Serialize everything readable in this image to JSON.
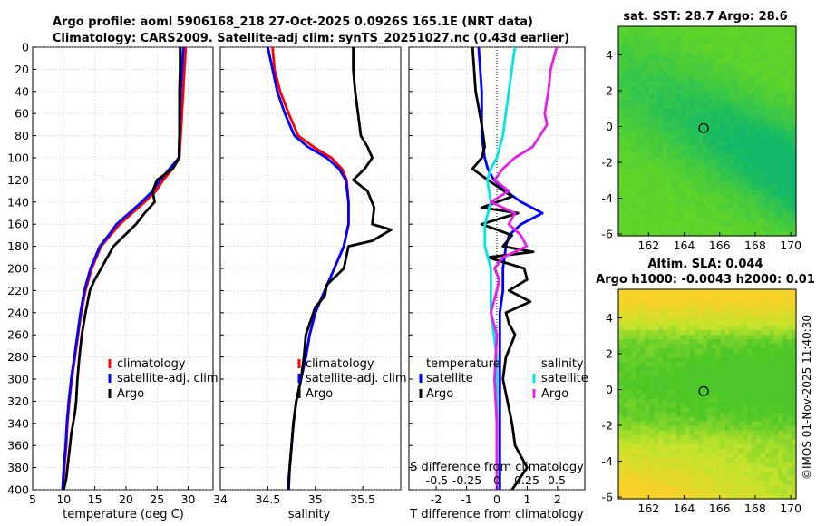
{
  "titles": {
    "line1": "Argo profile: aoml 5906168_218 27-Oct-2025 0.0926S 165.1E (NRT data)",
    "line2": "Climatology: CARS2009. Satellite-adj clim: synTS_20251027.nc (0.43d earlier)",
    "sst_title": "sat. SST: 28.7 Argo: 28.6",
    "sla_title1": "Altim. SLA: 0.044",
    "sla_title2": "Argo h1000: -0.0043 h2000: 0.01",
    "watermark": "©IMOS 01-Nov-2025 11:40:30"
  },
  "colors": {
    "climatology": "#ff0000",
    "satellite": "#0000ff",
    "argo": "#000000",
    "sal_satellite": "#00e5e5",
    "sal_argo": "#e620e6"
  },
  "chart_data": [
    {
      "type": "line",
      "name": "temperature",
      "xlabel": "temperature (deg C)",
      "xlim": [
        5,
        34
      ],
      "xticks": [
        5,
        10,
        15,
        20,
        25,
        30
      ],
      "xticklabels": [
        "5",
        "10",
        "15",
        "20",
        "25",
        "30"
      ],
      "ylim": [
        0,
        400
      ],
      "yticks": [
        0,
        20,
        40,
        60,
        80,
        100,
        120,
        140,
        160,
        180,
        200,
        220,
        240,
        260,
        280,
        300,
        320,
        340,
        360,
        380,
        400
      ],
      "yticklabels": [
        "0",
        "20",
        "40",
        "60",
        "80",
        "100",
        "120",
        "140",
        "160",
        "180",
        "200",
        "220",
        "240",
        "260",
        "280",
        "300",
        "320",
        "340",
        "360",
        "380",
        "400"
      ],
      "legend": [
        "climatology",
        "satellite-adj. clim",
        "Argo"
      ],
      "series": [
        {
          "name": "climatology",
          "color": "#ff0000",
          "x": [
            29.6,
            29.4,
            29.2,
            29.0,
            28.8,
            28.6,
            27.5,
            26.0,
            24.8,
            23.0,
            21.0,
            19.0,
            17.5,
            16.0,
            14.5,
            13.5,
            12.8,
            12.3,
            11.8,
            11.3,
            10.9,
            10.6,
            10.4,
            10.1,
            9.9
          ],
          "y": [
            0,
            20,
            40,
            60,
            80,
            100,
            110,
            120,
            130,
            140,
            150,
            160,
            170,
            180,
            200,
            220,
            240,
            260,
            280,
            300,
            320,
            340,
            360,
            380,
            400
          ]
        },
        {
          "name": "satellite-adj. clim",
          "color": "#0000ff",
          "x": [
            29.2,
            29.0,
            28.8,
            28.7,
            28.6,
            28.5,
            27.0,
            25.5,
            24.3,
            22.5,
            20.5,
            18.5,
            17.2,
            15.8,
            14.3,
            13.3,
            12.7,
            12.2,
            11.7,
            11.2,
            10.8,
            10.5,
            10.3,
            10.0,
            9.8
          ],
          "y": [
            0,
            20,
            40,
            60,
            80,
            100,
            110,
            120,
            130,
            140,
            150,
            160,
            170,
            180,
            200,
            220,
            240,
            260,
            280,
            300,
            320,
            340,
            360,
            380,
            400
          ]
        },
        {
          "name": "Argo",
          "color": "#000000",
          "x": [
            28.7,
            28.7,
            28.6,
            28.6,
            28.6,
            28.5,
            27.5,
            25.0,
            24.3,
            24.6,
            23.0,
            21.6,
            19.8,
            18.0,
            17.0,
            16.0,
            15.0,
            14.2,
            13.5,
            12.9,
            12.5,
            12.2,
            12.0,
            11.8,
            11.5,
            11.2,
            11.0,
            10.8,
            10.6,
            10.4,
            10.2,
            10.0
          ],
          "y": [
            0,
            20,
            40,
            60,
            80,
            100,
            110,
            120,
            130,
            140,
            150,
            160,
            170,
            180,
            190,
            200,
            210,
            220,
            240,
            260,
            280,
            300,
            320,
            330,
            340,
            350,
            360,
            370,
            380,
            390,
            395,
            400
          ]
        }
      ]
    },
    {
      "type": "line",
      "name": "salinity",
      "xlabel": "salinity",
      "xlim": [
        34,
        35.9
      ],
      "xticks": [
        34,
        34.5,
        35,
        35.5
      ],
      "xticklabels": [
        "34",
        "34.5",
        "35",
        "35.5"
      ],
      "ylim": [
        0,
        400
      ],
      "legend": [
        "climatology",
        "satellite-adj. clim",
        "Argo"
      ],
      "series": [
        {
          "name": "climatology",
          "color": "#ff0000",
          "x": [
            34.55,
            34.57,
            34.63,
            34.72,
            34.82,
            34.98,
            35.17,
            35.28,
            35.33,
            35.35,
            35.35,
            35.3,
            35.2,
            35.1,
            35.0,
            34.94,
            34.9,
            34.85,
            34.8,
            34.77,
            34.75,
            34.73,
            34.71
          ],
          "y": [
            0,
            20,
            40,
            60,
            80,
            90,
            100,
            110,
            120,
            140,
            160,
            180,
            200,
            220,
            240,
            260,
            280,
            300,
            320,
            340,
            360,
            380,
            400
          ]
        },
        {
          "name": "satellite-adj. clim",
          "color": "#0000ff",
          "x": [
            34.5,
            34.55,
            34.6,
            34.68,
            34.78,
            34.92,
            35.12,
            35.25,
            35.32,
            35.35,
            35.35,
            35.3,
            35.2,
            35.1,
            35.0,
            34.94,
            34.9,
            34.85,
            34.8,
            34.77,
            34.75,
            34.73,
            34.71
          ],
          "y": [
            0,
            20,
            40,
            60,
            80,
            90,
            100,
            110,
            120,
            140,
            160,
            180,
            200,
            220,
            240,
            260,
            280,
            300,
            320,
            340,
            360,
            380,
            400
          ]
        },
        {
          "name": "Argo",
          "color": "#000000",
          "x": [
            35.4,
            35.4,
            35.42,
            35.45,
            35.48,
            35.55,
            35.6,
            35.52,
            35.4,
            35.55,
            35.62,
            35.6,
            35.8,
            35.6,
            35.35,
            35.3,
            35.12,
            35.1,
            35.0,
            34.9,
            34.88,
            34.85,
            34.8,
            34.77,
            34.75,
            34.73,
            34.72
          ],
          "y": [
            0,
            20,
            40,
            60,
            80,
            90,
            100,
            110,
            120,
            130,
            145,
            160,
            165,
            175,
            180,
            200,
            215,
            225,
            235,
            260,
            280,
            300,
            320,
            340,
            360,
            380,
            400
          ]
        }
      ]
    },
    {
      "type": "line",
      "name": "difference",
      "xlabel": "T difference from climatology",
      "xlim": [
        -2.9,
        2.9
      ],
      "xticks": [
        -2,
        -1,
        0,
        1,
        2
      ],
      "xticklabels": [
        "-2",
        "-1",
        "0",
        "1",
        "2"
      ],
      "top_axis_label": "S difference from climatology",
      "top_ticks": [
        -0.5,
        -0.25,
        0,
        0.25,
        0.5
      ],
      "top_ticklabels": [
        "-0.5",
        "-0.25",
        "0",
        "0.25",
        "0.5"
      ],
      "ylim": [
        0,
        400
      ],
      "legend_left_header": "temperature",
      "legend_right_header": "salinity",
      "legend_left": [
        "satellite",
        "Argo"
      ],
      "legend_right": [
        "satellite",
        "Argo"
      ],
      "series": [
        {
          "name": "temperature satellite",
          "color": "#0000ff",
          "x": [
            -0.6,
            -0.5,
            -0.5,
            -0.4,
            -0.3,
            -0.1,
            0.3,
            0.8,
            1.5,
            0.8,
            0.4,
            0.3,
            0.2,
            0.2,
            0.1,
            0.1,
            0.1,
            0.1,
            0.1,
            0.1,
            0.1
          ],
          "y": [
            0,
            40,
            80,
            100,
            110,
            120,
            130,
            140,
            150,
            160,
            170,
            180,
            200,
            220,
            240,
            260,
            300,
            320,
            340,
            380,
            400
          ]
        },
        {
          "name": "temperature Argo",
          "color": "#000000",
          "x": [
            -0.8,
            -0.7,
            -0.5,
            -0.4,
            -0.5,
            -0.8,
            -0.3,
            0.5,
            -0.5,
            0.7,
            -0.5,
            0.5,
            0.2,
            1.2,
            -0.3,
            0.9,
            1.0,
            0.4,
            1.1,
            0.3,
            0.4,
            0.6,
            0.3,
            0.2,
            0.5,
            0.6,
            1.0,
            0.5
          ],
          "y": [
            0,
            40,
            70,
            90,
            100,
            110,
            120,
            135,
            145,
            150,
            160,
            170,
            180,
            185,
            190,
            200,
            210,
            220,
            230,
            240,
            250,
            260,
            280,
            300,
            340,
            360,
            380,
            400
          ]
        },
        {
          "name": "salinity satellite",
          "color": "#00e5e5",
          "x": [
            0.15,
            0.1,
            0.05,
            0.0,
            -0.05,
            -0.08,
            -0.05,
            -0.1,
            -0.1,
            -0.05,
            -0.05,
            0.0,
            0.0,
            0.0,
            0.0,
            0.0
          ],
          "y": [
            0,
            40,
            80,
            100,
            110,
            120,
            140,
            160,
            180,
            200,
            240,
            280,
            300,
            340,
            380,
            400
          ]
        },
        {
          "name": "salinity Argo",
          "color": "#e620e6",
          "x": [
            0.5,
            0.45,
            0.43,
            0.4,
            0.42,
            0.3,
            0.15,
            0.05,
            -0.02,
            0.1,
            -0.05,
            0.15,
            0.1,
            0.2,
            0.25,
            0.05,
            -0.02,
            0.02,
            0.0,
            -0.05,
            0.0,
            -0.02,
            0.0,
            0.0
          ],
          "y": [
            0,
            20,
            40,
            60,
            70,
            90,
            100,
            110,
            120,
            130,
            140,
            150,
            160,
            170,
            180,
            190,
            200,
            210,
            220,
            240,
            260,
            300,
            340,
            400
          ]
        }
      ]
    },
    {
      "type": "heatmap",
      "name": "sst_map",
      "title": "sat. SST: 28.7 Argo: 28.6",
      "xticks": [
        162,
        164,
        166,
        168,
        170
      ],
      "xticklabels": [
        "162",
        "164",
        "166",
        "168",
        "170"
      ],
      "yticks": [
        4,
        2,
        0,
        -2,
        -4,
        -6
      ],
      "yticklabels": [
        "4",
        "2",
        "0",
        "-2",
        "-4",
        "-6"
      ],
      "xlim": [
        160.3,
        170.3
      ],
      "ylim": [
        -6.1,
        5.6
      ],
      "marker": {
        "lon": 165.1,
        "lat": -0.09
      }
    },
    {
      "type": "heatmap",
      "name": "sla_map",
      "title": "Altim. SLA: 0.044",
      "xticks": [
        162,
        164,
        166,
        168,
        170
      ],
      "xticklabels": [
        "162",
        "164",
        "166",
        "168",
        "170"
      ],
      "yticks": [
        4,
        2,
        0,
        -2,
        -4,
        -6
      ],
      "yticklabels": [
        "4",
        "2",
        "0",
        "-2",
        "-4",
        "-6"
      ],
      "xlim": [
        160.3,
        170.3
      ],
      "ylim": [
        -6.1,
        5.6
      ],
      "marker": {
        "lon": 165.1,
        "lat": -0.09
      }
    }
  ]
}
